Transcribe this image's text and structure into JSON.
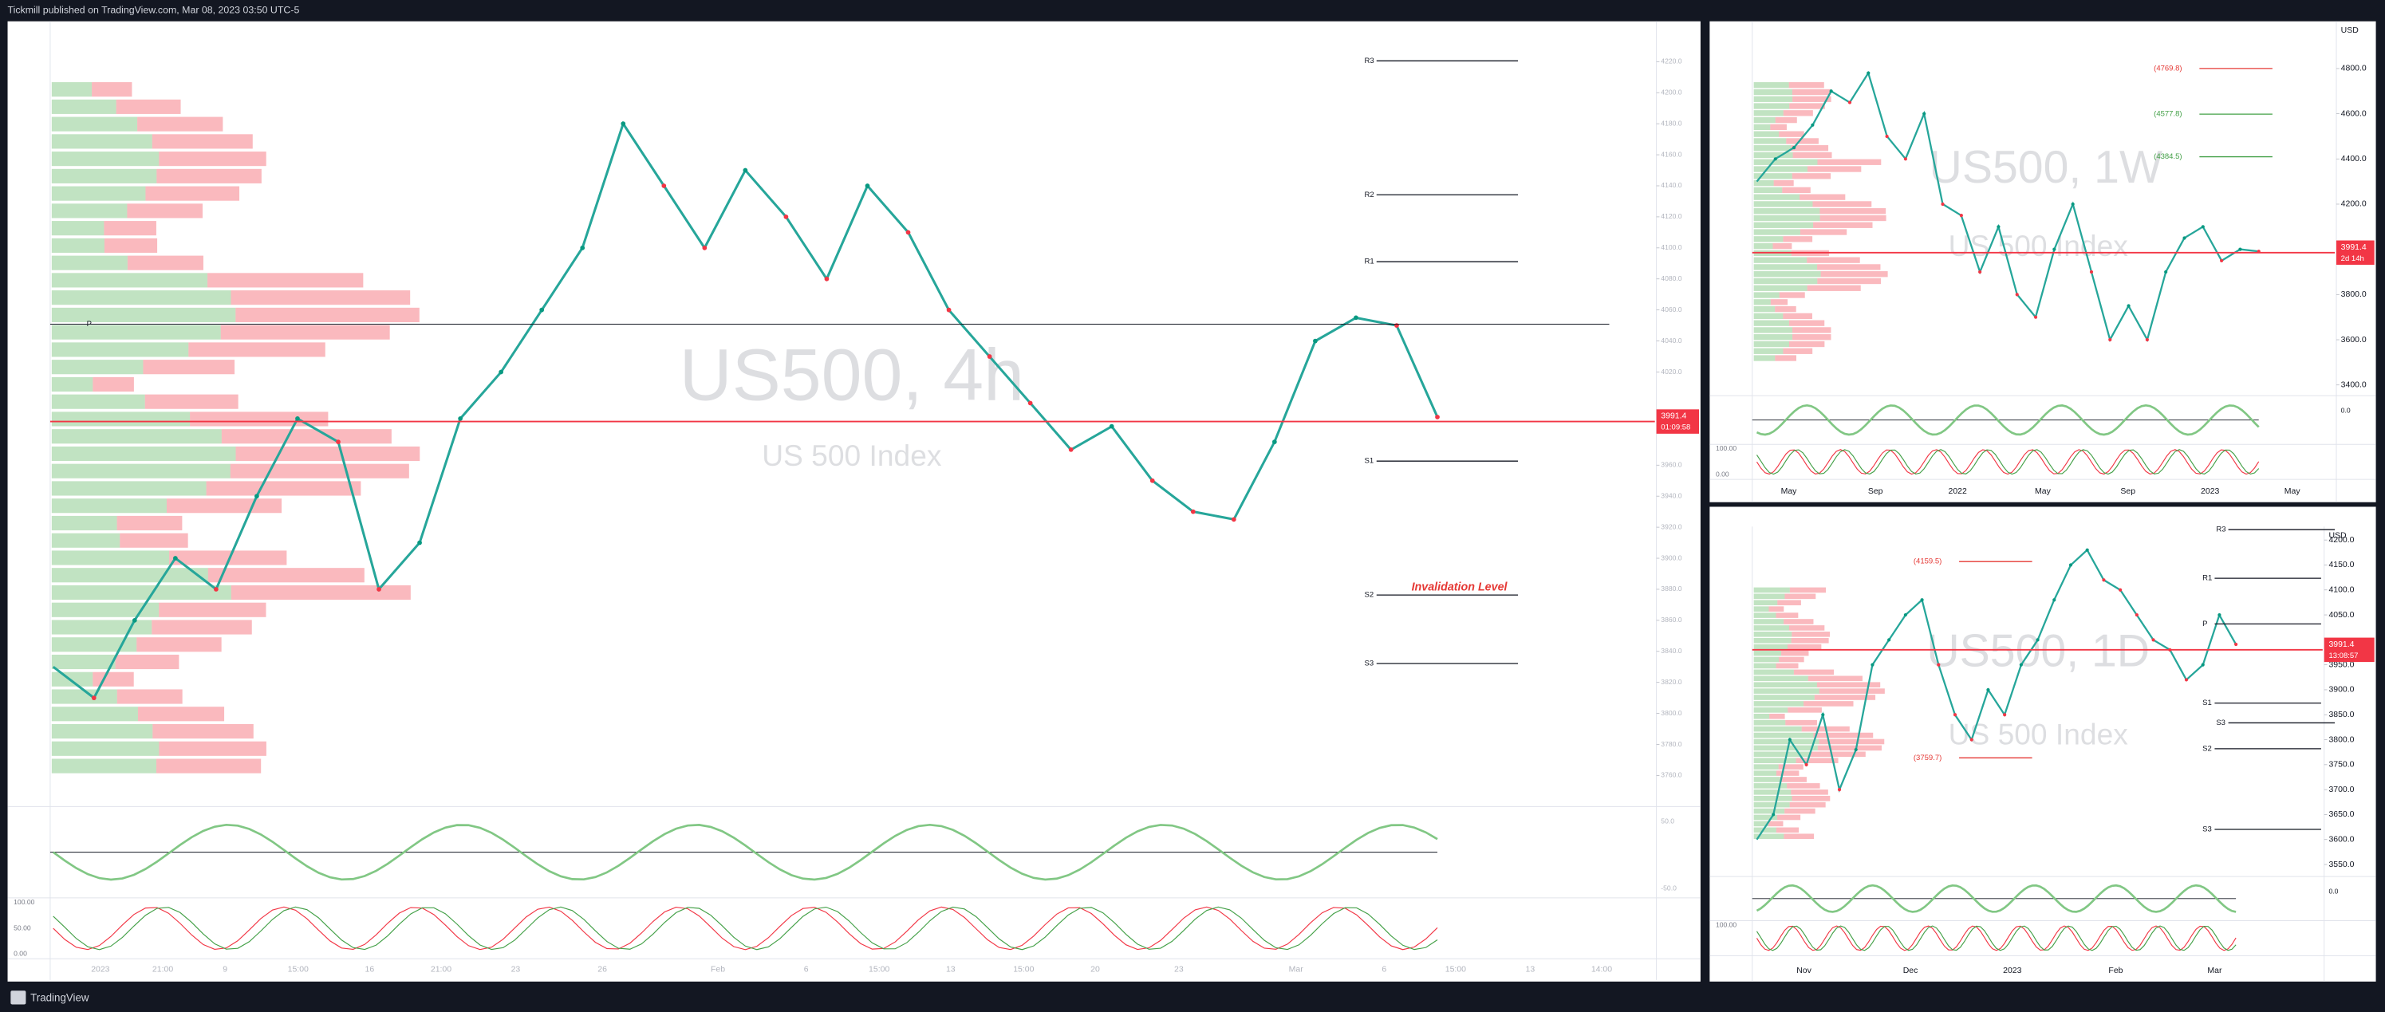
{
  "header": {
    "publisher": "Tickmill published on TradingView.com, Mar 08, 2023 03:50 UTC-5"
  },
  "footer": {
    "brand": "TradingView"
  },
  "panels": [
    {
      "watermark": "US500, 4h",
      "subtitle": "US 500 Index",
      "price_tag": "3991.4",
      "countdown": "01:09:58",
      "ylim": [
        3740,
        4246
      ],
      "yticks": [
        {
          "value": 4220,
          "label": "4220.0"
        },
        {
          "value": 4200,
          "label": "4200.0"
        },
        {
          "value": 4180,
          "label": "4180.0"
        },
        {
          "value": 4160,
          "label": "4160.0"
        },
        {
          "value": 4140,
          "label": "4140.0"
        },
        {
          "value": 4120,
          "label": "4120.0"
        },
        {
          "value": 4100,
          "label": "4100.0"
        },
        {
          "value": 4080,
          "label": "4080.0"
        },
        {
          "value": 4060,
          "label": "4060.0"
        },
        {
          "value": 4040,
          "label": "4040.0"
        },
        {
          "value": 4020,
          "label": "4020.0"
        },
        {
          "value": 3960,
          "label": "3960.0"
        },
        {
          "value": 3940,
          "label": "3940.0"
        },
        {
          "value": 3920,
          "label": "3920.0"
        },
        {
          "value": 3900,
          "label": "3900.0"
        },
        {
          "value": 3880,
          "label": "3880.0"
        },
        {
          "value": 3860,
          "label": "3860.0"
        },
        {
          "value": 3840,
          "label": "3840.0"
        },
        {
          "value": 3820,
          "label": "3820.0"
        },
        {
          "value": 3800,
          "label": "3800.0"
        },
        {
          "value": 3780,
          "label": "3780.0"
        },
        {
          "value": 3760,
          "label": "3760.0"
        }
      ],
      "time_axis": [
        "2023",
        "21:00",
        "9",
        "15:00",
        "16",
        "21:00",
        "23",
        "26",
        "Feb",
        "6",
        "15:00",
        "13",
        "15:00",
        "20",
        "23",
        "Mar",
        "6",
        "15:00",
        "13",
        "14:00"
      ],
      "closes": [
        3830,
        3810,
        3860,
        3900,
        3880,
        3940,
        3990,
        3975,
        3880,
        3910,
        3990,
        4020,
        4060,
        4100,
        4180,
        4140,
        4100,
        4150,
        4120,
        4080,
        4140,
        4110,
        4060,
        4030,
        4000,
        3970,
        3985,
        3950,
        3930,
        3925,
        3975,
        4040,
        4055,
        4050,
        3991
      ],
      "levels": [
        "R3",
        "R2",
        "R1",
        "S1",
        "S2",
        "S3"
      ],
      "pivot": "P",
      "annotation": "Invalidation Level",
      "oscillator_axis": [
        "50.0",
        "-50.0"
      ],
      "stoch_axis": [
        "100.00",
        "50.00",
        "0.00"
      ]
    },
    {
      "watermark": "US500, 1W",
      "subtitle": "US 500 Index",
      "price_tag": "3991.4",
      "countdown": "2d 14h",
      "currency": "USD",
      "ylim": [
        3366,
        5009
      ],
      "yticks": [
        {
          "value": 4800,
          "label": "4800.0"
        },
        {
          "value": 4600,
          "label": "4600.0"
        },
        {
          "value": 4400,
          "label": "4400.0"
        },
        {
          "value": 4200,
          "label": "4200.0"
        },
        {
          "value": 3800,
          "label": "3800.0"
        },
        {
          "value": 3600,
          "label": "3600.0"
        },
        {
          "value": 3400,
          "label": "3400.0"
        }
      ],
      "time_axis": [
        "May",
        "Sep",
        "2022",
        "May",
        "Sep",
        "2023",
        "May"
      ],
      "closes": [
        4300,
        4400,
        4450,
        4550,
        4700,
        4650,
        4780,
        4500,
        4400,
        4600,
        4200,
        4150,
        3900,
        4100,
        3800,
        3700,
        4000,
        4200,
        3900,
        3600,
        3750,
        3600,
        3900,
        4050,
        4100,
        3950,
        4000,
        3991
      ],
      "levels": [
        "(4769.8)",
        "(4577.8)",
        "(4384.5)"
      ],
      "oscillator_axis": [
        "0.0"
      ],
      "stoch_axis": [
        "100.00",
        "0.00"
      ]
    },
    {
      "watermark": "US500, 1D",
      "subtitle": "US 500 Index",
      "price_tag": "3991.4",
      "countdown": "13:08:57",
      "currency": "USD",
      "ylim": [
        3538,
        4227
      ],
      "yticks": [
        {
          "value": 4200,
          "label": "4200.0"
        },
        {
          "value": 4150,
          "label": "4150.0"
        },
        {
          "value": 4100,
          "label": "4100.0"
        },
        {
          "value": 4050,
          "label": "4050.0"
        },
        {
          "value": 3950,
          "label": "3950.0"
        },
        {
          "value": 3900,
          "label": "3900.0"
        },
        {
          "value": 3850,
          "label": "3850.0"
        },
        {
          "value": 3800,
          "label": "3800.0"
        },
        {
          "value": 3750,
          "label": "3750.0"
        },
        {
          "value": 3700,
          "label": "3700.0"
        },
        {
          "value": 3650,
          "label": "3650.0"
        },
        {
          "value": 3600,
          "label": "3600.0"
        },
        {
          "value": 3550,
          "label": "3550.0"
        }
      ],
      "time_axis": [
        "Nov",
        "Dec",
        "2023",
        "Feb",
        "Mar"
      ],
      "closes": [
        3600,
        3650,
        3800,
        3750,
        3850,
        3700,
        3780,
        3950,
        4000,
        4050,
        4080,
        3950,
        3850,
        3800,
        3900,
        3850,
        3950,
        4000,
        4080,
        4150,
        4180,
        4120,
        4100,
        4050,
        4000,
        3980,
        3920,
        3950,
        4050,
        3991
      ],
      "levels": [
        "R3",
        "R1",
        "P",
        "S1",
        "S3",
        "S2",
        "S3",
        "(4159.5)",
        "(3759.7)"
      ],
      "oscillator_axis": [
        "0.0"
      ],
      "stoch_axis": [
        "100.00"
      ]
    }
  ]
}
